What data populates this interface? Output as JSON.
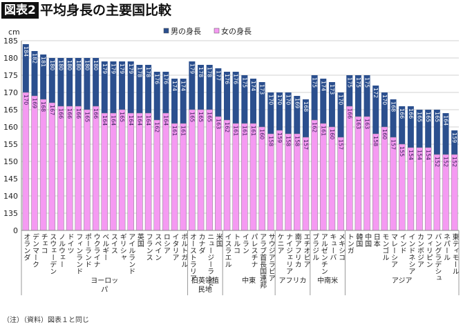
{
  "title_badge": "図表2",
  "title": "平均身長の主要国比較",
  "note": "（注）（資料）図表１と同じ",
  "chart_data": {
    "type": "bar",
    "overlapping": true,
    "yunit": "cm",
    "yticks": [
      185,
      180,
      175,
      170,
      165,
      160,
      155,
      150,
      145,
      140,
      135,
      0
    ],
    "ylim": [
      0,
      185
    ],
    "axis_break": "135 to 0",
    "grid": true,
    "legend_position": "top-right",
    "colors": {
      "male": "#2b4f8e",
      "female": "#f59af2"
    },
    "series": [
      {
        "name": "男の身長",
        "key": "male"
      },
      {
        "name": "女の身長",
        "key": "female"
      }
    ],
    "groups": [
      {
        "name": "ヨーロッパ",
        "items": [
          [
            "オランダ",
            184,
            170
          ],
          [
            "デンマーク",
            182,
            169
          ],
          [
            "チェコ",
            181,
            168
          ],
          [
            "スウェーデン",
            180,
            167
          ],
          [
            "ノルウェー",
            180,
            166
          ],
          [
            "ドイツ",
            180,
            166
          ],
          [
            "フィンランド",
            180,
            166
          ],
          [
            "ポーランド",
            180,
            165
          ],
          [
            "ウクライナ",
            180,
            166
          ],
          [
            "ベルギー",
            179,
            164
          ],
          [
            "スイス",
            179,
            164
          ],
          [
            "ギリシャ",
            179,
            165
          ],
          [
            "アイルランド",
            179,
            164
          ],
          [
            "英国",
            178,
            164
          ],
          [
            "フランス",
            178,
            164
          ],
          [
            "スペイン",
            176,
            162
          ],
          [
            "ロシア",
            176,
            164
          ],
          [
            "イタリア",
            174,
            161
          ],
          [
            "ポルトガル",
            174,
            161
          ]
        ]
      },
      {
        "name": "旧英領植民地",
        "items": [
          [
            "オーストラリア",
            179,
            165
          ],
          [
            "カナダ",
            178,
            165
          ],
          [
            "ニュージーランド",
            178,
            165
          ],
          [
            "米国",
            177,
            163
          ]
        ]
      },
      {
        "name": "中東",
        "items": [
          [
            "イスラエル",
            176,
            162
          ],
          [
            "トルコ",
            176,
            161
          ],
          [
            "イラン",
            175,
            161
          ],
          [
            "パレスチナ",
            174,
            161
          ],
          [
            "アラブ首長国連邦",
            173,
            160
          ],
          [
            "サウジアラビア",
            170,
            158
          ]
        ]
      },
      {
        "name": "アフリカ",
        "items": [
          [
            "ケニア",
            170,
            159
          ],
          [
            "ナイジェリア",
            170,
            158
          ],
          [
            "南アフリカ",
            169,
            158
          ],
          [
            "エチオピア",
            168,
            157
          ]
        ]
      },
      {
        "name": "中南米",
        "items": [
          [
            "ブラジル",
            175,
            162
          ],
          [
            "アルゼンチン",
            174,
            161
          ],
          [
            "キューバ",
            173,
            160
          ],
          [
            "メキシコ",
            170,
            157
          ]
        ]
      },
      {
        "name": "アジア",
        "items": [
          [
            "トンガ",
            175,
            166
          ],
          [
            "韓国",
            175,
            163
          ],
          [
            "中国",
            175,
            163
          ],
          [
            "日本",
            172,
            158
          ],
          [
            "モンゴル",
            170,
            160
          ],
          [
            "マレーシア",
            168,
            157
          ],
          [
            "インド",
            166,
            155
          ],
          [
            "インドネシア",
            166,
            154
          ],
          [
            "カンボジア",
            165,
            154
          ],
          [
            "フィリピン",
            165,
            154
          ],
          [
            "バングラデシュ",
            165,
            152
          ],
          [
            "ネパール",
            164,
            152
          ],
          [
            "東ティモール",
            159,
            152
          ]
        ]
      }
    ]
  }
}
